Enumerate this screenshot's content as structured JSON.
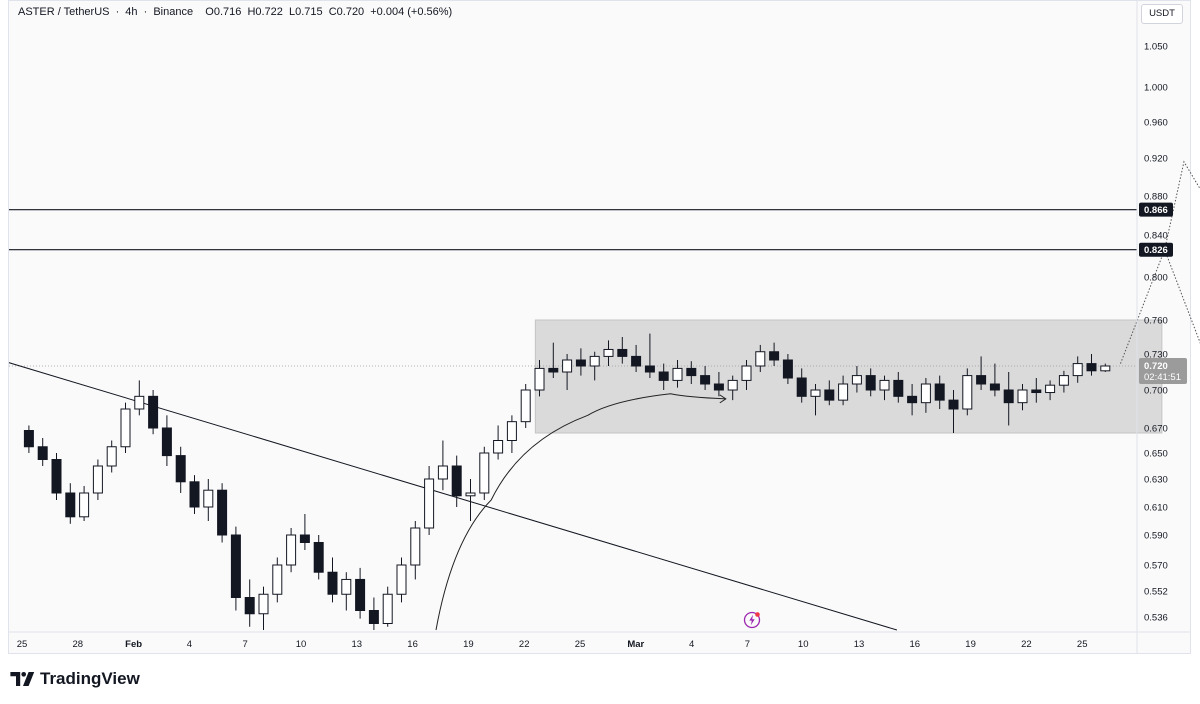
{
  "header": {
    "symbol": "ASTER / TetherUS",
    "interval": "4h",
    "exchange": "Binance",
    "open": "O0.716",
    "high": "H0.722",
    "low": "L0.715",
    "close": "C0.720",
    "change": "+0.004 (+0.56%)"
  },
  "currency_button": "USDT",
  "branding": {
    "name": "TradingView"
  },
  "colors": {
    "candle": "#131722",
    "range_box": "#d3d3d3",
    "level_line": "#131722",
    "trend_line": "#131722",
    "projection": "#555555",
    "current_price_tag": "#9b9b9b",
    "flash_icon": "#9c27b0"
  },
  "icons": [
    "flash-icon",
    "tradingview-logo-icon"
  ],
  "chart_data": {
    "type": "candlestick",
    "title": "ASTER / TetherUS · 4h · Binance",
    "ylabel": "USDT",
    "ylim": [
      0.528,
      1.075
    ],
    "y_ticks": [
      "1.050",
      "1.000",
      "0.960",
      "0.920",
      "0.880",
      "0.840",
      "0.800",
      "0.760",
      "0.730",
      "0.700",
      "0.670",
      "0.650",
      "0.630",
      "0.610",
      "0.590",
      "0.570",
      "0.552",
      "0.536"
    ],
    "x_ticks": [
      "25",
      "28",
      "Feb",
      "4",
      "7",
      "10",
      "13",
      "16",
      "19",
      "22",
      "25",
      "Mar",
      "4",
      "7",
      "10",
      "13",
      "16",
      "19",
      "22",
      "25"
    ],
    "x_range_days": [
      0,
      40
    ],
    "current_price": {
      "value": "0.720",
      "countdown": "02:41:51"
    },
    "levels": [
      {
        "value": 0.866,
        "label": "0.866"
      },
      {
        "value": 0.826,
        "label": "0.826"
      }
    ],
    "range_box": {
      "day_start": 18.6,
      "day_end": 41.3,
      "price_top": 0.76,
      "price_bottom": 0.666
    },
    "trendline": {
      "points": [
        [
          0.0,
          0.723
        ],
        [
          31.7,
          0.528
        ]
      ]
    },
    "curve_arrow": {
      "points": [
        [
          15.0,
          0.528
        ],
        [
          17.0,
          0.615
        ],
        [
          20.5,
          0.68
        ],
        [
          23.5,
          0.697
        ],
        [
          25.5,
          0.693
        ]
      ]
    },
    "projection_up": {
      "points": [
        [
          39.8,
          0.722
        ],
        [
          41.4,
          0.826
        ],
        [
          42.1,
          0.916
        ],
        [
          44.0,
          0.826
        ],
        [
          46.3,
          1.01
        ]
      ]
    },
    "projection_down": {
      "points": [
        [
          41.4,
          0.826
        ],
        [
          44.9,
          0.613
        ]
      ]
    },
    "candles": [
      {
        "d": 0.25,
        "o": 0.668,
        "h": 0.672,
        "l": 0.65,
        "c": 0.655
      },
      {
        "d": 0.75,
        "o": 0.655,
        "h": 0.662,
        "l": 0.64,
        "c": 0.645
      },
      {
        "d": 1.25,
        "o": 0.645,
        "h": 0.65,
        "l": 0.615,
        "c": 0.62
      },
      {
        "d": 1.75,
        "o": 0.62,
        "h": 0.627,
        "l": 0.598,
        "c": 0.603
      },
      {
        "d": 2.25,
        "o": 0.603,
        "h": 0.625,
        "l": 0.6,
        "c": 0.62
      },
      {
        "d": 2.75,
        "o": 0.62,
        "h": 0.645,
        "l": 0.615,
        "c": 0.64
      },
      {
        "d": 3.25,
        "o": 0.64,
        "h": 0.66,
        "l": 0.635,
        "c": 0.655
      },
      {
        "d": 3.75,
        "o": 0.655,
        "h": 0.69,
        "l": 0.65,
        "c": 0.685
      },
      {
        "d": 4.25,
        "o": 0.685,
        "h": 0.708,
        "l": 0.68,
        "c": 0.695
      },
      {
        "d": 4.75,
        "o": 0.695,
        "h": 0.7,
        "l": 0.665,
        "c": 0.67
      },
      {
        "d": 5.25,
        "o": 0.67,
        "h": 0.68,
        "l": 0.64,
        "c": 0.648
      },
      {
        "d": 5.75,
        "o": 0.648,
        "h": 0.655,
        "l": 0.62,
        "c": 0.628
      },
      {
        "d": 6.25,
        "o": 0.628,
        "h": 0.633,
        "l": 0.605,
        "c": 0.61
      },
      {
        "d": 6.75,
        "o": 0.61,
        "h": 0.63,
        "l": 0.6,
        "c": 0.622
      },
      {
        "d": 7.25,
        "o": 0.622,
        "h": 0.627,
        "l": 0.585,
        "c": 0.59
      },
      {
        "d": 7.75,
        "o": 0.59,
        "h": 0.596,
        "l": 0.54,
        "c": 0.548
      },
      {
        "d": 8.25,
        "o": 0.548,
        "h": 0.56,
        "l": 0.53,
        "c": 0.538
      },
      {
        "d": 8.75,
        "o": 0.538,
        "h": 0.555,
        "l": 0.528,
        "c": 0.55
      },
      {
        "d": 9.25,
        "o": 0.55,
        "h": 0.575,
        "l": 0.545,
        "c": 0.57
      },
      {
        "d": 9.75,
        "o": 0.57,
        "h": 0.595,
        "l": 0.565,
        "c": 0.59
      },
      {
        "d": 10.25,
        "o": 0.59,
        "h": 0.605,
        "l": 0.58,
        "c": 0.585
      },
      {
        "d": 10.75,
        "o": 0.585,
        "h": 0.59,
        "l": 0.56,
        "c": 0.565
      },
      {
        "d": 11.25,
        "o": 0.565,
        "h": 0.575,
        "l": 0.545,
        "c": 0.55
      },
      {
        "d": 11.75,
        "o": 0.55,
        "h": 0.565,
        "l": 0.54,
        "c": 0.56
      },
      {
        "d": 12.25,
        "o": 0.56,
        "h": 0.568,
        "l": 0.535,
        "c": 0.54
      },
      {
        "d": 12.75,
        "o": 0.54,
        "h": 0.548,
        "l": 0.528,
        "c": 0.532
      },
      {
        "d": 13.25,
        "o": 0.532,
        "h": 0.555,
        "l": 0.53,
        "c": 0.55
      },
      {
        "d": 13.75,
        "o": 0.55,
        "h": 0.575,
        "l": 0.545,
        "c": 0.57
      },
      {
        "d": 14.25,
        "o": 0.57,
        "h": 0.6,
        "l": 0.56,
        "c": 0.595
      },
      {
        "d": 14.75,
        "o": 0.595,
        "h": 0.64,
        "l": 0.59,
        "c": 0.63
      },
      {
        "d": 15.25,
        "o": 0.63,
        "h": 0.66,
        "l": 0.622,
        "c": 0.64
      },
      {
        "d": 15.75,
        "o": 0.64,
        "h": 0.648,
        "l": 0.61,
        "c": 0.618
      },
      {
        "d": 16.25,
        "o": 0.618,
        "h": 0.63,
        "l": 0.6,
        "c": 0.62
      },
      {
        "d": 16.75,
        "o": 0.62,
        "h": 0.655,
        "l": 0.615,
        "c": 0.65
      },
      {
        "d": 17.25,
        "o": 0.65,
        "h": 0.672,
        "l": 0.645,
        "c": 0.66
      },
      {
        "d": 17.75,
        "o": 0.66,
        "h": 0.68,
        "l": 0.65,
        "c": 0.675
      },
      {
        "d": 18.25,
        "o": 0.675,
        "h": 0.705,
        "l": 0.67,
        "c": 0.7
      },
      {
        "d": 18.75,
        "o": 0.7,
        "h": 0.725,
        "l": 0.695,
        "c": 0.718
      },
      {
        "d": 19.25,
        "o": 0.718,
        "h": 0.74,
        "l": 0.71,
        "c": 0.715
      },
      {
        "d": 19.75,
        "o": 0.715,
        "h": 0.73,
        "l": 0.7,
        "c": 0.725
      },
      {
        "d": 20.25,
        "o": 0.725,
        "h": 0.735,
        "l": 0.712,
        "c": 0.72
      },
      {
        "d": 20.75,
        "o": 0.72,
        "h": 0.732,
        "l": 0.708,
        "c": 0.728
      },
      {
        "d": 21.25,
        "o": 0.728,
        "h": 0.742,
        "l": 0.72,
        "c": 0.734
      },
      {
        "d": 21.75,
        "o": 0.734,
        "h": 0.745,
        "l": 0.722,
        "c": 0.728
      },
      {
        "d": 22.25,
        "o": 0.728,
        "h": 0.738,
        "l": 0.715,
        "c": 0.72
      },
      {
        "d": 22.75,
        "o": 0.72,
        "h": 0.748,
        "l": 0.71,
        "c": 0.715
      },
      {
        "d": 23.25,
        "o": 0.715,
        "h": 0.722,
        "l": 0.7,
        "c": 0.708
      },
      {
        "d": 23.75,
        "o": 0.708,
        "h": 0.725,
        "l": 0.702,
        "c": 0.718
      },
      {
        "d": 24.25,
        "o": 0.718,
        "h": 0.724,
        "l": 0.705,
        "c": 0.712
      },
      {
        "d": 24.75,
        "o": 0.712,
        "h": 0.72,
        "l": 0.7,
        "c": 0.705
      },
      {
        "d": 25.25,
        "o": 0.705,
        "h": 0.715,
        "l": 0.695,
        "c": 0.7
      },
      {
        "d": 25.75,
        "o": 0.7,
        "h": 0.712,
        "l": 0.692,
        "c": 0.708
      },
      {
        "d": 26.25,
        "o": 0.708,
        "h": 0.725,
        "l": 0.7,
        "c": 0.72
      },
      {
        "d": 26.75,
        "o": 0.72,
        "h": 0.738,
        "l": 0.715,
        "c": 0.732
      },
      {
        "d": 27.25,
        "o": 0.732,
        "h": 0.74,
        "l": 0.72,
        "c": 0.725
      },
      {
        "d": 27.75,
        "o": 0.725,
        "h": 0.73,
        "l": 0.705,
        "c": 0.71
      },
      {
        "d": 28.25,
        "o": 0.71,
        "h": 0.718,
        "l": 0.69,
        "c": 0.695
      },
      {
        "d": 28.75,
        "o": 0.695,
        "h": 0.705,
        "l": 0.68,
        "c": 0.7
      },
      {
        "d": 29.25,
        "o": 0.7,
        "h": 0.708,
        "l": 0.688,
        "c": 0.692
      },
      {
        "d": 29.75,
        "o": 0.692,
        "h": 0.712,
        "l": 0.688,
        "c": 0.705
      },
      {
        "d": 30.25,
        "o": 0.705,
        "h": 0.72,
        "l": 0.698,
        "c": 0.712
      },
      {
        "d": 30.75,
        "o": 0.712,
        "h": 0.718,
        "l": 0.695,
        "c": 0.7
      },
      {
        "d": 31.25,
        "o": 0.7,
        "h": 0.712,
        "l": 0.692,
        "c": 0.708
      },
      {
        "d": 31.75,
        "o": 0.708,
        "h": 0.715,
        "l": 0.69,
        "c": 0.695
      },
      {
        "d": 32.25,
        "o": 0.695,
        "h": 0.705,
        "l": 0.68,
        "c": 0.69
      },
      {
        "d": 32.75,
        "o": 0.69,
        "h": 0.71,
        "l": 0.682,
        "c": 0.705
      },
      {
        "d": 33.25,
        "o": 0.705,
        "h": 0.712,
        "l": 0.685,
        "c": 0.692
      },
      {
        "d": 33.75,
        "o": 0.692,
        "h": 0.7,
        "l": 0.666,
        "c": 0.685
      },
      {
        "d": 34.25,
        "o": 0.685,
        "h": 0.718,
        "l": 0.68,
        "c": 0.712
      },
      {
        "d": 34.75,
        "o": 0.712,
        "h": 0.728,
        "l": 0.7,
        "c": 0.705
      },
      {
        "d": 35.25,
        "o": 0.705,
        "h": 0.722,
        "l": 0.695,
        "c": 0.7
      },
      {
        "d": 35.75,
        "o": 0.7,
        "h": 0.715,
        "l": 0.672,
        "c": 0.69
      },
      {
        "d": 36.25,
        "o": 0.69,
        "h": 0.705,
        "l": 0.684,
        "c": 0.7
      },
      {
        "d": 36.75,
        "o": 0.7,
        "h": 0.71,
        "l": 0.69,
        "c": 0.698
      },
      {
        "d": 37.25,
        "o": 0.698,
        "h": 0.708,
        "l": 0.692,
        "c": 0.704
      },
      {
        "d": 37.75,
        "o": 0.704,
        "h": 0.716,
        "l": 0.698,
        "c": 0.712
      },
      {
        "d": 38.25,
        "o": 0.712,
        "h": 0.728,
        "l": 0.706,
        "c": 0.722
      },
      {
        "d": 38.75,
        "o": 0.722,
        "h": 0.73,
        "l": 0.712,
        "c": 0.716
      },
      {
        "d": 39.25,
        "o": 0.716,
        "h": 0.722,
        "l": 0.715,
        "c": 0.72
      }
    ]
  }
}
